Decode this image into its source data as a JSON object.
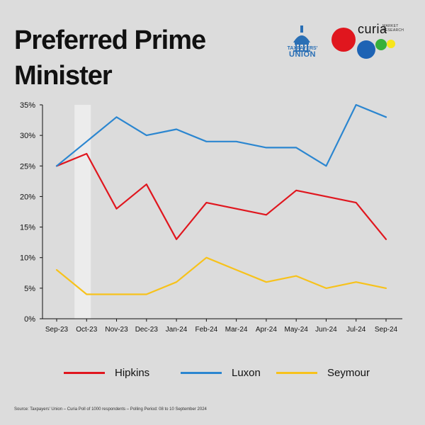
{
  "header": {
    "title": "Preferred Prime Minister",
    "logo_tu_line1": "TAXPAYERS'",
    "logo_tu_line2": "UNION",
    "logo_curia_word": "curia",
    "logo_curia_sub": "MARKET RESEARCH"
  },
  "colors": {
    "background": "#dcdcdc",
    "hipkins": "#e0161e",
    "luxon": "#2b86d0",
    "seymour": "#f7c21b",
    "highlight": "#ececec"
  },
  "chart_data": {
    "type": "line",
    "title": "Preferred Prime Minister",
    "categories": [
      "Sep-23",
      "Oct-23",
      "Nov-23",
      "Dec-23",
      "Jan-24",
      "Feb-24",
      "Mar-24",
      "Apr-24",
      "May-24",
      "Jun-24",
      "Jul-24",
      "Sep-24"
    ],
    "series": [
      {
        "name": "Hipkins",
        "color": "#e0161e",
        "values": [
          25,
          27,
          18,
          22,
          13,
          19,
          18,
          17,
          21,
          20,
          19,
          13
        ]
      },
      {
        "name": "Luxon",
        "color": "#2b86d0",
        "values": [
          25,
          29,
          33,
          30,
          31,
          29,
          29,
          28,
          28,
          25,
          35,
          33
        ]
      },
      {
        "name": "Seymour",
        "color": "#f7c21b",
        "values": [
          8,
          4,
          4,
          4,
          6,
          10,
          8,
          6,
          7,
          5,
          6,
          5
        ]
      }
    ],
    "highlight_category": "Oct-23",
    "ylim": [
      0,
      35
    ],
    "yticks": [
      0,
      5,
      10,
      15,
      20,
      25,
      30,
      35
    ],
    "ytick_labels": [
      "0%",
      "5%",
      "10%",
      "15%",
      "20%",
      "25%",
      "30%",
      "35%"
    ],
    "xlabel": "",
    "ylabel": "",
    "legend_position": "bottom"
  },
  "legend": {
    "items": [
      "Hipkins",
      "Luxon",
      "Seymour"
    ]
  },
  "footer": {
    "source": "Source: Taxpayers' Union – Curia Poll of 1000 respondents – Polling Period: 08 to 10 September 2024"
  }
}
